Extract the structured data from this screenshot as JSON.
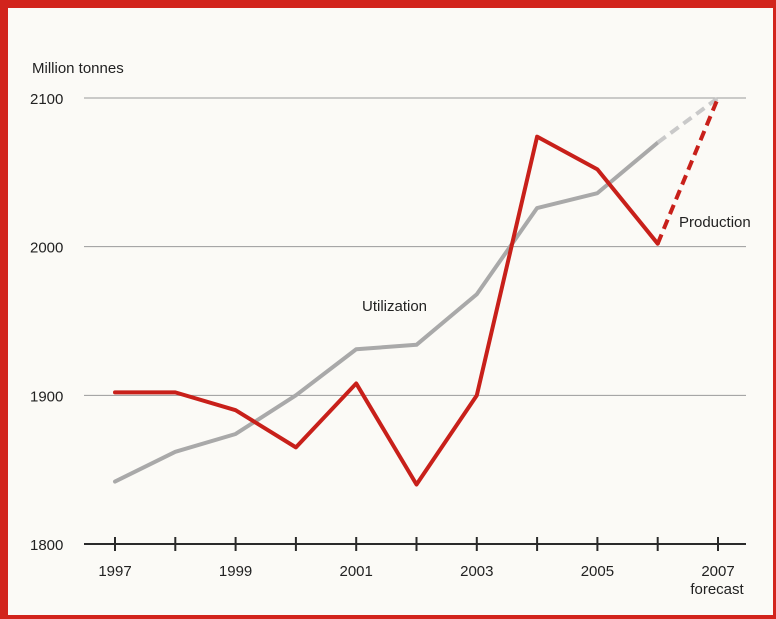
{
  "chart_data": {
    "type": "line",
    "ylabel": "Million tonnes",
    "ylim": [
      1800,
      2100
    ],
    "yticks": [
      1800,
      1900,
      2000,
      2100
    ],
    "grid": true,
    "x": [
      1997,
      1998,
      1999,
      2000,
      2001,
      2002,
      2003,
      2004,
      2005,
      2006,
      2007
    ],
    "xtick_labels": [
      "1997",
      "1999",
      "2001",
      "2003",
      "2005",
      "2007"
    ],
    "xtick_years": [
      1997,
      1999,
      2001,
      2003,
      2005,
      2007
    ],
    "forecast_label": "forecast",
    "forecast_from": 2006,
    "series": [
      {
        "name": "Production",
        "color": "#c8201a",
        "values": [
          1902,
          1902,
          1890,
          1865,
          1908,
          1840,
          1900,
          2074,
          2052,
          2002,
          2100
        ]
      },
      {
        "name": "Utilization",
        "color": "#a9a9a9",
        "values": [
          1842,
          1862,
          1874,
          1900,
          1931,
          1934,
          1968,
          2026,
          2036,
          2070,
          2100
        ]
      }
    ]
  }
}
